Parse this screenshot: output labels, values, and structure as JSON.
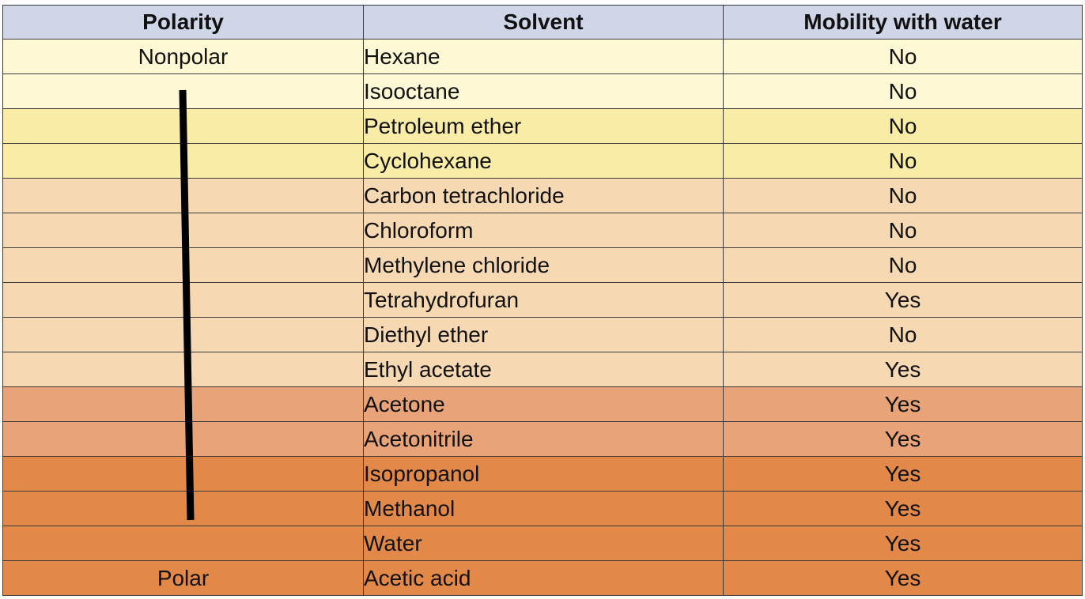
{
  "table": {
    "headers": {
      "polarity": "Polarity",
      "solvent": "Solvent",
      "mobility": "Mobility with water"
    },
    "rows": [
      {
        "polarity": "Nonpolar",
        "solvent": "Hexane",
        "mobility": "No",
        "color": "#fff8d4"
      },
      {
        "polarity": "",
        "solvent": "Isooctane",
        "mobility": "No",
        "color": "#fff8d4"
      },
      {
        "polarity": "",
        "solvent": "Petroleum ether",
        "mobility": "No",
        "color": "#f9eca6"
      },
      {
        "polarity": "",
        "solvent": "Cyclohexane",
        "mobility": "No",
        "color": "#f9eca6"
      },
      {
        "polarity": "",
        "solvent": "Carbon tetrachloride",
        "mobility": "No",
        "color": "#f6d8b2"
      },
      {
        "polarity": "",
        "solvent": "Chloroform",
        "mobility": "No",
        "color": "#f6d8b2"
      },
      {
        "polarity": "",
        "solvent": "Methylene chloride",
        "mobility": "No",
        "color": "#f6d8b2"
      },
      {
        "polarity": "",
        "solvent": "Tetrahydrofuran",
        "mobility": "Yes",
        "color": "#f6d8b2"
      },
      {
        "polarity": "",
        "solvent": "Diethyl ether",
        "mobility": "No",
        "color": "#f6d8b2"
      },
      {
        "polarity": "",
        "solvent": "Ethyl acetate",
        "mobility": "Yes",
        "color": "#f6d8b2"
      },
      {
        "polarity": "",
        "solvent": "Acetone",
        "mobility": "Yes",
        "color": "#e8a478"
      },
      {
        "polarity": "",
        "solvent": "Acetonitrile",
        "mobility": "Yes",
        "color": "#e8a478"
      },
      {
        "polarity": "",
        "solvent": "Isopropanol",
        "mobility": "Yes",
        "color": "#e28848"
      },
      {
        "polarity": "",
        "solvent": "Methanol",
        "mobility": "Yes",
        "color": "#e28848"
      },
      {
        "polarity": "",
        "solvent": "Water",
        "mobility": "Yes",
        "color": "#e28848"
      },
      {
        "polarity": "Polar",
        "solvent": "Acetic acid",
        "mobility": "Yes",
        "color": "#e28848"
      }
    ]
  },
  "colors": {
    "header_bg": "#cfd6e8",
    "grid_line": "#3a3a3a",
    "arrow": "#000000"
  }
}
